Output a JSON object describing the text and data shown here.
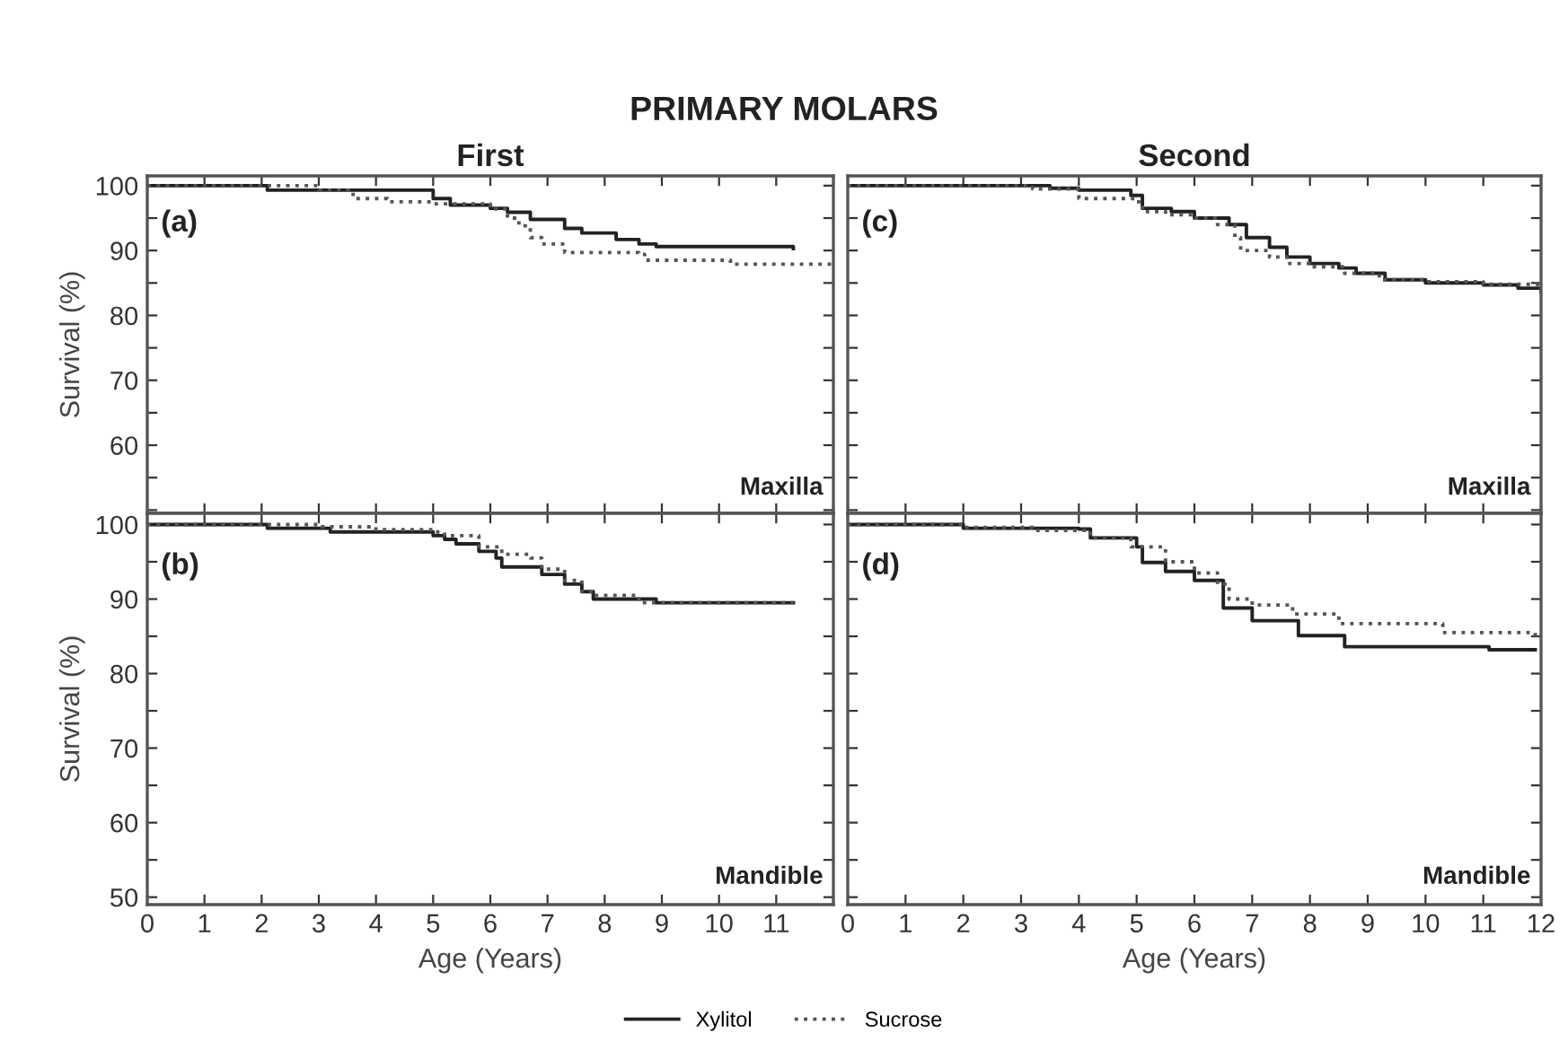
{
  "chart_data": [
    {
      "type": "step",
      "title": "PRIMARY MOLARS",
      "subtitle": "First",
      "ylabel": "Survival (%)",
      "annotations": [
        "(a)",
        "Maxilla"
      ],
      "tick_labels": "y",
      "legend": "bottom",
      "xlim": [
        0,
        12
      ],
      "xticks": [
        0,
        1,
        2,
        3,
        4,
        5,
        6,
        7,
        8,
        9,
        10,
        11,
        {
          "value": 12,
          "label": null
        }
      ],
      "ylim": [
        49.5,
        101.5
      ],
      "yticks": [
        {
          "value": 50,
          "label": null
        },
        {
          "value": 55,
          "label": null
        },
        60,
        {
          "value": 65,
          "label": null
        },
        70,
        {
          "value": 75,
          "label": null
        },
        80,
        {
          "value": 85,
          "label": null
        },
        90,
        {
          "value": 95,
          "label": null
        },
        100
      ],
      "series": [
        {
          "name": "Xylitol",
          "color": "#222222",
          "line_style": "solid",
          "x": [
            0,
            2.1,
            5.0,
            5.3,
            6.0,
            6.3,
            6.7,
            7.3,
            7.6,
            8.2,
            8.6,
            8.9,
            11.3
          ],
          "values": [
            100,
            99.3,
            98,
            97,
            96.5,
            95.9,
            94.8,
            93.4,
            92.7,
            91.7,
            91,
            90.6,
            90.3
          ]
        },
        {
          "name": "Sucrose",
          "color": "#555555",
          "line_style": "dotted",
          "x": [
            0,
            3.0,
            3.6,
            4.2,
            5.0,
            6.0,
            6.3,
            6.5,
            6.7,
            6.9,
            7.3,
            8.6,
            8.7,
            10.2,
            12.0
          ],
          "values": [
            100,
            99.3,
            98,
            97.5,
            97.2,
            96.4,
            95,
            93.8,
            92,
            91,
            89.7,
            89.4,
            88.5,
            87.9,
            87.6
          ]
        }
      ]
    },
    {
      "type": "step",
      "xlabel": "Age (Years)",
      "ylabel": "Survival (%)",
      "annotations": [
        "(b)",
        "Mandible"
      ],
      "xlim": [
        0,
        12
      ],
      "xticks": [
        0,
        1,
        2,
        3,
        4,
        5,
        6,
        7,
        8,
        9,
        10,
        11,
        {
          "value": 12,
          "label": null
        }
      ],
      "ylim": [
        49,
        101.5
      ],
      "yticks": [
        50,
        {
          "value": 55,
          "label": null
        },
        60,
        {
          "value": 65,
          "label": null
        },
        70,
        {
          "value": 75,
          "label": null
        },
        80,
        {
          "value": 85,
          "label": null
        },
        90,
        {
          "value": 95,
          "label": null
        },
        100
      ],
      "series": [
        {
          "color": "#222222",
          "line_style": "solid",
          "x": [
            0,
            2.1,
            3.2,
            5.0,
            5.2,
            5.4,
            5.8,
            6.1,
            6.2,
            6.9,
            7.3,
            7.6,
            7.8,
            8.9,
            11.3
          ],
          "values": [
            100,
            99.5,
            99,
            98.5,
            98,
            97.4,
            96.4,
            95.5,
            94.3,
            93.3,
            92,
            91,
            90,
            89.5,
            89.5
          ]
        },
        {
          "color": "#555555",
          "line_style": "dotted",
          "x": [
            0,
            3.0,
            4.0,
            5.0,
            5.2,
            5.8,
            6.2,
            6.7,
            6.9,
            7.3,
            7.6,
            7.8,
            8.6,
            11.3
          ],
          "values": [
            100,
            99.7,
            99.3,
            99,
            98.5,
            97,
            96,
            95.5,
            94,
            92.5,
            91,
            90.5,
            89.5,
            89.5
          ]
        }
      ]
    },
    {
      "type": "step",
      "subtitle": "Second",
      "annotations": [
        "(c)",
        "Maxilla"
      ],
      "tick_labels": false,
      "xlim": [
        0,
        12
      ],
      "xticks": [
        0,
        1,
        2,
        3,
        4,
        5,
        6,
        7,
        8,
        9,
        10,
        11,
        12
      ],
      "ylim": [
        49.5,
        101.5
      ],
      "yticks": [
        50,
        55,
        60,
        65,
        70,
        75,
        80,
        85,
        90,
        95,
        100
      ],
      "series": [
        {
          "color": "#222222",
          "line_style": "solid",
          "x": [
            0,
            3.5,
            4.0,
            4.9,
            5.1,
            5.6,
            6.0,
            6.6,
            6.9,
            7.3,
            7.6,
            8.0,
            8.5,
            8.8,
            9.3,
            10.0,
            11.0,
            11.6,
            12.0
          ],
          "values": [
            100,
            99.6,
            99.3,
            98.5,
            96.5,
            96,
            95,
            94,
            92,
            90.5,
            89,
            88,
            87.3,
            86.5,
            85.5,
            85,
            84.7,
            84.2,
            83.7
          ]
        },
        {
          "color": "#555555",
          "line_style": "dotted",
          "x": [
            0,
            3.2,
            4.0,
            5.0,
            5.1,
            5.5,
            6.0,
            6.4,
            6.7,
            6.8,
            7.3,
            7.6,
            8.0,
            8.6,
            9.2,
            10.0,
            11.0,
            12.0
          ],
          "values": [
            100,
            99.5,
            98,
            97.5,
            96,
            95.5,
            95,
            94,
            92,
            90,
            89,
            88,
            87.5,
            86.5,
            85.5,
            85.2,
            84.8,
            84.5
          ]
        }
      ]
    },
    {
      "type": "step",
      "xlabel": "Age (Years)",
      "annotations": [
        "(d)",
        "Mandible"
      ],
      "tick_labels": "x",
      "xlim": [
        0,
        12
      ],
      "xticks": [
        0,
        1,
        2,
        3,
        4,
        5,
        6,
        7,
        8,
        9,
        10,
        11,
        12
      ],
      "ylim": [
        49,
        101.5
      ],
      "yticks": [
        50,
        55,
        60,
        65,
        70,
        75,
        80,
        85,
        90,
        95,
        100
      ],
      "series": [
        {
          "color": "#222222",
          "line_style": "solid",
          "x": [
            0,
            2.0,
            4.0,
            4.2,
            5.0,
            5.1,
            5.5,
            6.0,
            6.5,
            7.0,
            7.8,
            8.6,
            11.1,
            11.9
          ],
          "values": [
            100,
            99.5,
            99.4,
            98.2,
            97,
            94.9,
            93.7,
            92.5,
            88.8,
            87.1,
            85.1,
            83.6,
            83.2,
            83.2
          ]
        },
        {
          "color": "#555555",
          "line_style": "dotted",
          "x": [
            0,
            2.0,
            3.2,
            4.2,
            4.9,
            5.5,
            6.0,
            6.4,
            6.6,
            7.0,
            7.7,
            8.5,
            10.3,
            11.9
          ],
          "values": [
            100,
            99.6,
            99.2,
            98.2,
            97,
            95,
            93.5,
            92,
            90,
            89.2,
            88,
            86.7,
            85.5,
            84.9
          ]
        }
      ]
    }
  ]
}
